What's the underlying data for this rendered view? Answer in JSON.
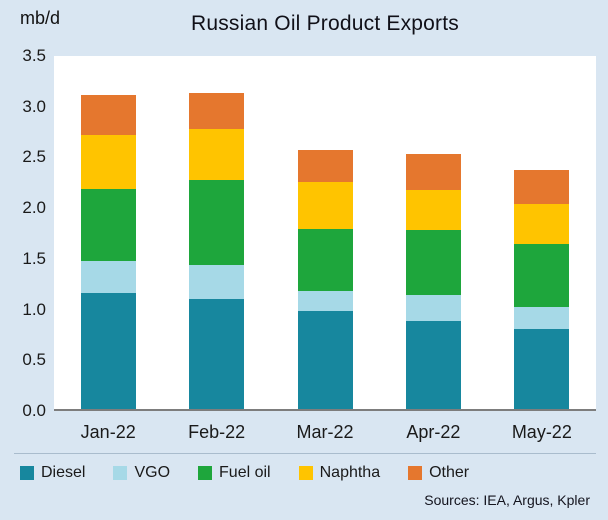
{
  "header": {
    "unit_label": "mb/d",
    "title": "Russian Oil Product Exports"
  },
  "footer": {
    "sources": "Sources: IEA, Argus, Kpler"
  },
  "chart_data": {
    "type": "bar",
    "stacked": true,
    "title": "Russian Oil Product Exports",
    "ylabel": "mb/d",
    "xlabel": "",
    "ylim": [
      0,
      3.5
    ],
    "yticks": [
      "3.5",
      "3.0",
      "2.5",
      "2.0",
      "1.5",
      "1.0",
      "0.5",
      "0.0"
    ],
    "grid": false,
    "legend_position": "bottom",
    "background_color": "#d9e6f2",
    "plot_background_color": "#ffffff",
    "categories": [
      "Jan-22",
      "Feb-22",
      "Mar-22",
      "Apr-22",
      "May-22"
    ],
    "series": [
      {
        "name": "Diesel",
        "color": "#17879e",
        "values": [
          1.15,
          1.09,
          0.97,
          0.87,
          0.79
        ]
      },
      {
        "name": "VGO",
        "color": "#a6d9e7",
        "values": [
          0.32,
          0.34,
          0.2,
          0.26,
          0.22
        ]
      },
      {
        "name": "Fuel oil",
        "color": "#1ea63c",
        "values": [
          0.71,
          0.84,
          0.62,
          0.65,
          0.63
        ]
      },
      {
        "name": "Naphtha",
        "color": "#ffc400",
        "values": [
          0.54,
          0.51,
          0.46,
          0.39,
          0.39
        ]
      },
      {
        "name": "Other",
        "color": "#e5772e",
        "values": [
          0.39,
          0.35,
          0.32,
          0.36,
          0.34
        ]
      }
    ],
    "totals": [
      3.11,
      3.13,
      2.57,
      2.53,
      2.37
    ],
    "sources_note": "Sources: IEA, Argus, Kpler"
  }
}
